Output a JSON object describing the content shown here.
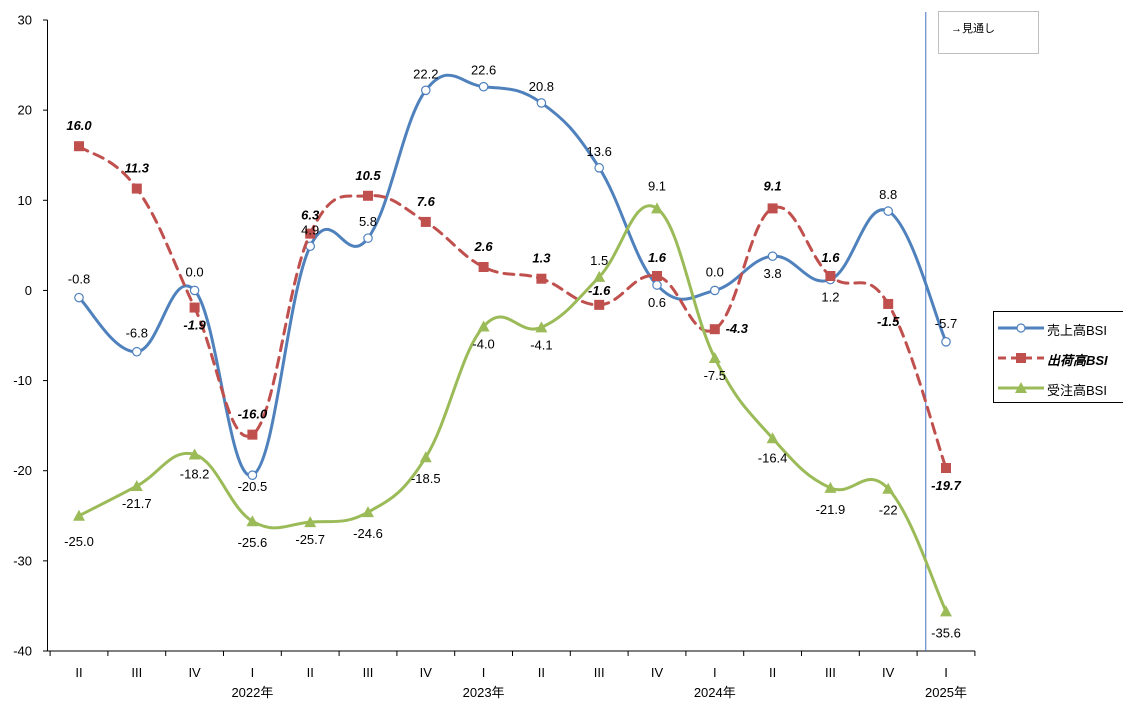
{
  "chart_data": {
    "type": "line",
    "x": [
      "II",
      "III",
      "IV",
      "I",
      "II",
      "III",
      "IV",
      "I",
      "II",
      "III",
      "IV",
      "I",
      "II",
      "III",
      "IV",
      "I"
    ],
    "year_labels": [
      {
        "label": "2022年",
        "index": 3
      },
      {
        "label": "2023年",
        "index": 7
      },
      {
        "label": "2024年",
        "index": 11
      },
      {
        "label": "2025年",
        "index": 15
      }
    ],
    "ylim": [
      -40,
      30
    ],
    "yticks": [
      -40,
      -30,
      -20,
      -10,
      0,
      10,
      20,
      30
    ],
    "series": [
      {
        "name": "売上高BSI",
        "color": "#4f81bd",
        "style": "solid",
        "marker": "circle",
        "values": [
          -0.8,
          -6.8,
          0.0,
          -20.5,
          4.9,
          5.8,
          22.2,
          22.6,
          20.8,
          13.6,
          0.6,
          0.0,
          3.8,
          1.2,
          8.8,
          -5.7
        ],
        "labels": [
          "-0.8",
          "-6.8",
          "0.0",
          "-20.5",
          "4.9",
          "5.8",
          "22.2",
          "22.6",
          "20.8",
          "13.6",
          "0.6",
          "0.0",
          "3.8",
          "1.2",
          "8.8",
          "-5.7"
        ]
      },
      {
        "name": "出荷高BSI",
        "color": "#c0504d",
        "style": "dashed",
        "marker": "square",
        "values": [
          16.0,
          11.3,
          -1.9,
          -16.0,
          6.3,
          10.5,
          7.6,
          2.6,
          1.3,
          -1.6,
          1.6,
          -4.3,
          9.1,
          1.6,
          -1.5,
          -19.7
        ],
        "labels": [
          "16.0",
          "11.3",
          "-1.9",
          "-16.0",
          "6.3",
          "10.5",
          "7.6",
          "2.6",
          "1.3",
          "-1.6",
          "1.6",
          "-4.3",
          "9.1",
          "1.6",
          "-1.5",
          "-19.7"
        ]
      },
      {
        "name": "受注高BSI",
        "color": "#9bbb59",
        "style": "solid",
        "marker": "triangle",
        "values": [
          -25.0,
          -21.7,
          -18.2,
          -25.6,
          -25.7,
          -24.6,
          -18.5,
          -4.0,
          -4.1,
          1.5,
          9.1,
          -7.5,
          -16.4,
          -21.9,
          -22.0,
          -35.6
        ],
        "labels": [
          "-25.0",
          "-21.7",
          "-18.2",
          "-25.6",
          "-25.7",
          "-24.6",
          "-18.5",
          "-4.0",
          "-4.1",
          "1.5",
          "9.1",
          "-7.5",
          "-16.4",
          "-21.9",
          "-22",
          "-35.6"
        ]
      }
    ],
    "forecast_note": "→見通し",
    "forecast_marker_index": 14.65,
    "legend_position": "right"
  }
}
